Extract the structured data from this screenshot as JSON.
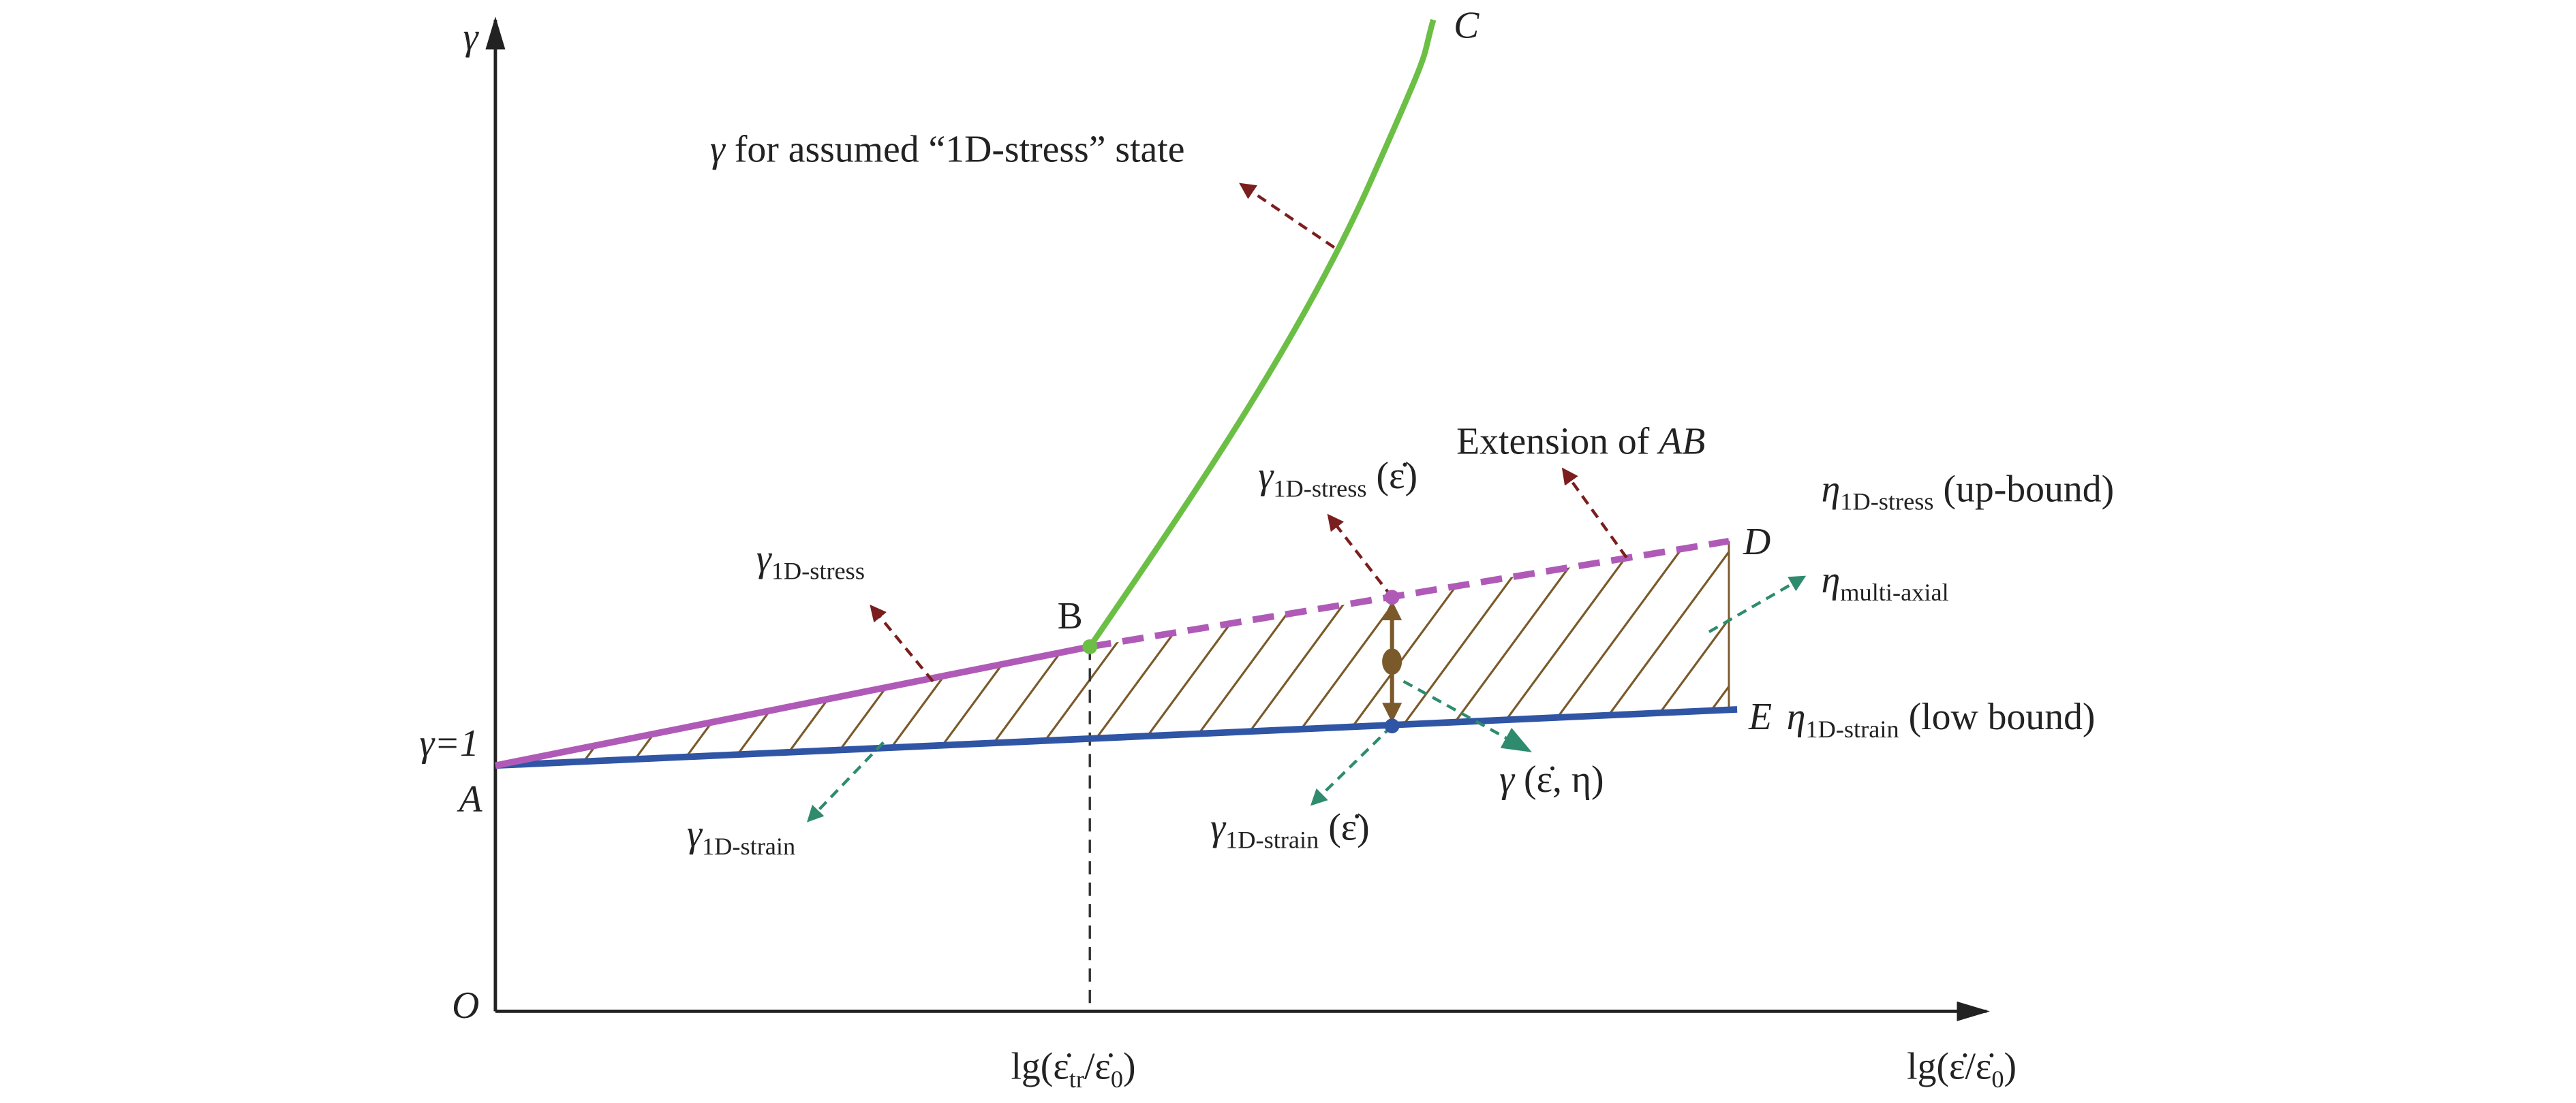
{
  "axes": {
    "y_label": "γ",
    "origin": "O",
    "gamma_one": "γ=1",
    "x_tick": {
      "prefix": "lg(ε̇",
      "sub_tr": "tr",
      "slash": "/ε̇",
      "sub_0": "0",
      "close": ")"
    },
    "x_label": {
      "prefix": "lg(ε̇",
      "slash": "/ε̇",
      "sub_0": "0",
      "close": ")"
    }
  },
  "points": {
    "A": "A",
    "B": "B",
    "C": "C",
    "D": "D",
    "E": "E"
  },
  "annotations": {
    "gamma_assumed": {
      "symbol": "γ",
      "text": " for assumed “1D-stress” state"
    },
    "extension": {
      "text": "Extension of ",
      "ab": "AB"
    },
    "eta_up": {
      "symbol": "η",
      "sub": "1D-stress",
      "text": " (up-bound)"
    },
    "eta_multi": {
      "symbol": "η",
      "sub": "multi-axial"
    },
    "eta_low": {
      "symbol": "η",
      "sub": "1D-strain",
      "text": " (low bound)"
    },
    "gamma_stress": {
      "symbol": "γ",
      "sub": "1D-stress"
    },
    "gamma_stress_rate": {
      "symbol": "γ",
      "sub": "1D-stress",
      "text": " (ε̇)"
    },
    "gamma_strain": {
      "symbol": "γ",
      "sub": "1D-strain"
    },
    "gamma_strain_rate": {
      "symbol": "γ",
      "sub": "1D-strain",
      "text": " (ε̇)"
    },
    "gamma_eta": {
      "symbol": "γ",
      "text": " (ε̇, η)"
    }
  }
}
